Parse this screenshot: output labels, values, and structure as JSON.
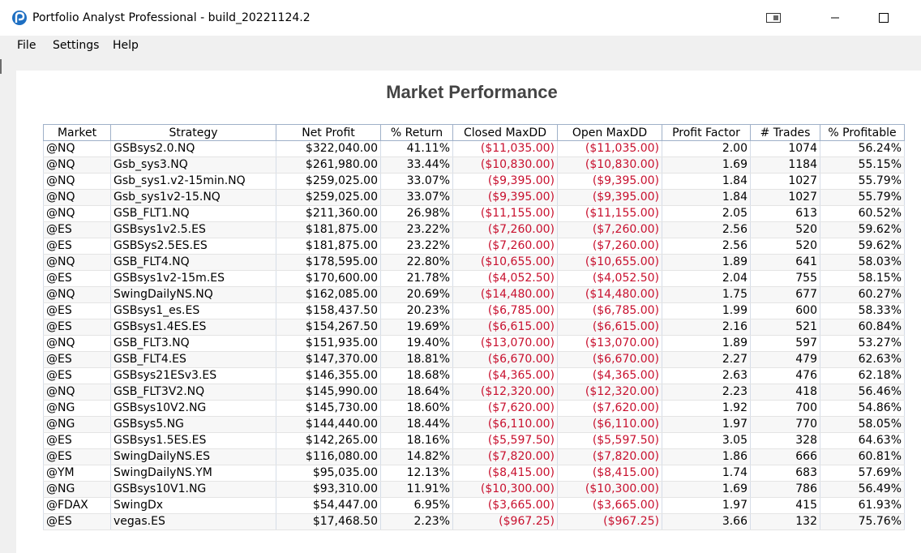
{
  "window": {
    "title": "Portfolio Analyst Professional - build_20221124.2"
  },
  "menu": [
    "File",
    "Settings",
    "Help"
  ],
  "heading": "Market Performance",
  "table": {
    "columns": [
      "Market",
      "Strategy",
      "Net Profit",
      "% Return",
      "Closed MaxDD",
      "Open MaxDD",
      "Profit Factor",
      "# Trades",
      "% Profitable"
    ],
    "rows": [
      [
        "@NQ",
        "GSBsys2.0.NQ",
        "$322,040.00",
        "41.11%",
        "($11,035.00)",
        "($11,035.00)",
        "2.00",
        "1074",
        "56.24%"
      ],
      [
        "@NQ",
        "Gsb_sys3.NQ",
        "$261,980.00",
        "33.44%",
        "($10,830.00)",
        "($10,830.00)",
        "1.69",
        "1184",
        "55.15%"
      ],
      [
        "@NQ",
        "Gsb_sys1.v2-15min.NQ",
        "$259,025.00",
        "33.07%",
        "($9,395.00)",
        "($9,395.00)",
        "1.84",
        "1027",
        "55.79%"
      ],
      [
        "@NQ",
        "Gsb_sys1v2-15.NQ",
        "$259,025.00",
        "33.07%",
        "($9,395.00)",
        "($9,395.00)",
        "1.84",
        "1027",
        "55.79%"
      ],
      [
        "@NQ",
        "GSB_FLT1.NQ",
        "$211,360.00",
        "26.98%",
        "($11,155.00)",
        "($11,155.00)",
        "2.05",
        "613",
        "60.52%"
      ],
      [
        "@ES",
        "GSBsys1v2.5.ES",
        "$181,875.00",
        "23.22%",
        "($7,260.00)",
        "($7,260.00)",
        "2.56",
        "520",
        "59.62%"
      ],
      [
        "@ES",
        "GSBSys2.5ES.ES",
        "$181,875.00",
        "23.22%",
        "($7,260.00)",
        "($7,260.00)",
        "2.56",
        "520",
        "59.62%"
      ],
      [
        "@NQ",
        "GSB_FLT4.NQ",
        "$178,595.00",
        "22.80%",
        "($10,655.00)",
        "($10,655.00)",
        "1.89",
        "641",
        "58.03%"
      ],
      [
        "@ES",
        "GSBsys1v2-15m.ES",
        "$170,600.00",
        "21.78%",
        "($4,052.50)",
        "($4,052.50)",
        "2.04",
        "755",
        "58.15%"
      ],
      [
        "@NQ",
        "SwingDailyNS.NQ",
        "$162,085.00",
        "20.69%",
        "($14,480.00)",
        "($14,480.00)",
        "1.75",
        "677",
        "60.27%"
      ],
      [
        "@ES",
        "GSBsys1_es.ES",
        "$158,437.50",
        "20.23%",
        "($6,785.00)",
        "($6,785.00)",
        "1.99",
        "600",
        "58.33%"
      ],
      [
        "@ES",
        "GSBsys1.4ES.ES",
        "$154,267.50",
        "19.69%",
        "($6,615.00)",
        "($6,615.00)",
        "2.16",
        "521",
        "60.84%"
      ],
      [
        "@NQ",
        "GSB_FLT3.NQ",
        "$151,935.00",
        "19.40%",
        "($13,070.00)",
        "($13,070.00)",
        "1.89",
        "597",
        "53.27%"
      ],
      [
        "@ES",
        "GSB_FLT4.ES",
        "$147,370.00",
        "18.81%",
        "($6,670.00)",
        "($6,670.00)",
        "2.27",
        "479",
        "62.63%"
      ],
      [
        "@ES",
        "GSBsys21ESv3.ES",
        "$146,355.00",
        "18.68%",
        "($4,365.00)",
        "($4,365.00)",
        "2.63",
        "476",
        "62.18%"
      ],
      [
        "@NQ",
        "GSB_FLT3V2.NQ",
        "$145,990.00",
        "18.64%",
        "($12,320.00)",
        "($12,320.00)",
        "2.23",
        "418",
        "56.46%"
      ],
      [
        "@NG",
        "GSBsys10V2.NG",
        "$145,730.00",
        "18.60%",
        "($7,620.00)",
        "($7,620.00)",
        "1.92",
        "700",
        "54.86%"
      ],
      [
        "@NG",
        "GSBsys5.NG",
        "$144,440.00",
        "18.44%",
        "($6,110.00)",
        "($6,110.00)",
        "1.97",
        "770",
        "58.05%"
      ],
      [
        "@ES",
        "GSBsys1.5ES.ES",
        "$142,265.00",
        "18.16%",
        "($5,597.50)",
        "($5,597.50)",
        "3.05",
        "328",
        "64.63%"
      ],
      [
        "@ES",
        "SwingDailyNS.ES",
        "$116,080.00",
        "14.82%",
        "($7,820.00)",
        "($7,820.00)",
        "1.86",
        "666",
        "60.81%"
      ],
      [
        "@YM",
        "SwingDailyNS.YM",
        "$95,035.00",
        "12.13%",
        "($8,415.00)",
        "($8,415.00)",
        "1.74",
        "683",
        "57.69%"
      ],
      [
        "@NG",
        "GSBsys10V1.NG",
        "$93,310.00",
        "11.91%",
        "($10,300.00)",
        "($10,300.00)",
        "1.69",
        "786",
        "56.49%"
      ],
      [
        "@FDAX",
        "SwingDx",
        "$54,447.00",
        "6.95%",
        "($3,665.00)",
        "($3,665.00)",
        "1.97",
        "415",
        "61.93%"
      ],
      [
        "@ES",
        "vegas.ES",
        "$17,468.50",
        "2.23%",
        "($967.25)",
        "($967.25)",
        "3.66",
        "132",
        "75.76%"
      ]
    ]
  },
  "colors": {
    "negative": "#c8102e",
    "heading": "#444444",
    "grid_border": "#9fb0c8"
  }
}
